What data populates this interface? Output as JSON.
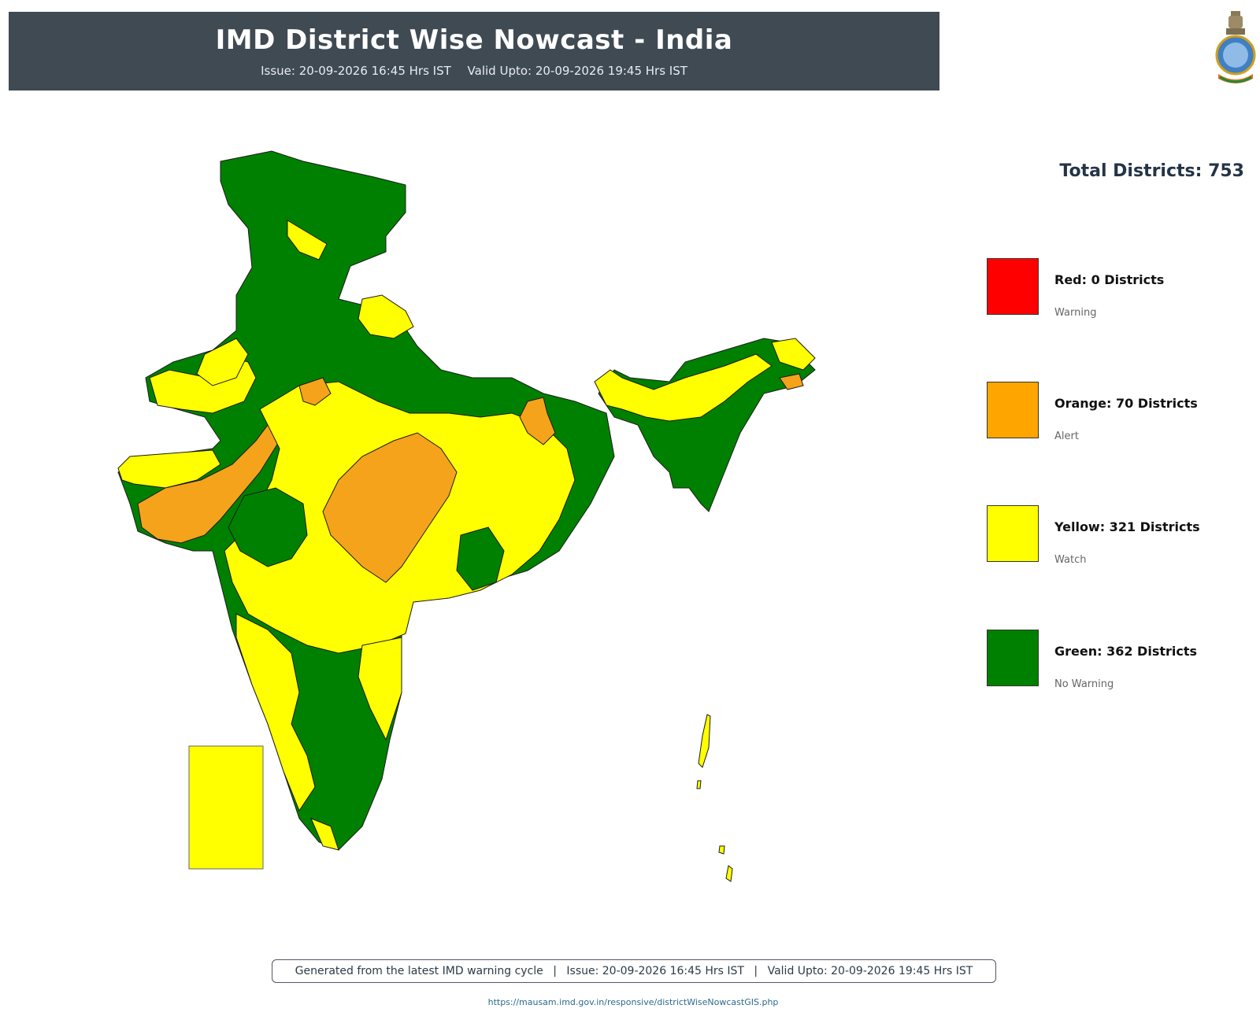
{
  "header": {
    "title": "IMD District Wise Nowcast - India",
    "issue": "Issue: 20-09-2026 16:45 Hrs IST",
    "valid": "Valid Upto: 20-09-2026 19:45 Hrs IST"
  },
  "total": "Total Districts: 753",
  "legend": [
    {
      "label": "Red: 0 Districts",
      "desc": "Warning",
      "color": "#ff0000"
    },
    {
      "label": "Orange: 70 Districts",
      "desc": "Alert",
      "color": "#ffa500"
    },
    {
      "label": "Yellow: 321 Districts",
      "desc": "Watch",
      "color": "#ffff00"
    },
    {
      "label": "Green: 362 Districts",
      "desc": "No Warning",
      "color": "#008000"
    }
  ],
  "footer": {
    "note": "Generated from the latest IMD warning cycle",
    "issue": "Issue: 20-09-2026 16:45 Hrs IST",
    "valid": "Valid Upto: 20-09-2026 19:45 Hrs IST",
    "separator": "|",
    "url": "https://mausam.imd.gov.in/responsive/districtWiseNowcastGIS.php"
  },
  "colors": {
    "green": "#008000",
    "yellow": "#ffff00",
    "orange": "#f5a31a",
    "red": "#ff0000",
    "header_bg": "#3f4a53"
  }
}
